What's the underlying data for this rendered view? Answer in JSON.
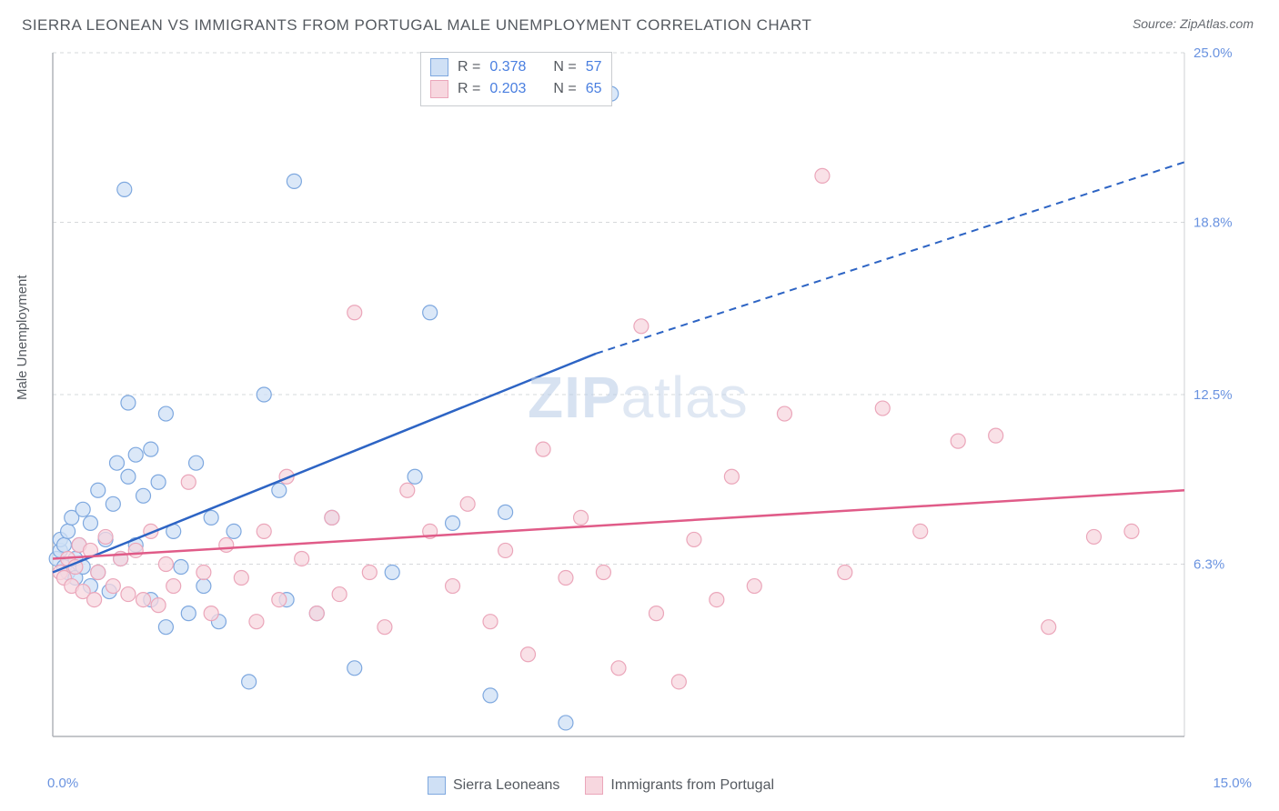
{
  "title": "SIERRA LEONEAN VS IMMIGRANTS FROM PORTUGAL MALE UNEMPLOYMENT CORRELATION CHART",
  "source": "Source: ZipAtlas.com",
  "ylabel": "Male Unemployment",
  "watermark_bold": "ZIP",
  "watermark_rest": "atlas",
  "chart": {
    "type": "scatter",
    "background_color": "#ffffff",
    "grid_color": "#d6d8db",
    "grid_dash": "4,4",
    "border_color": "#b0b4b9",
    "xlim": [
      0.0,
      15.0
    ],
    "ylim": [
      0.0,
      25.0
    ],
    "yticks": [
      6.3,
      12.5,
      18.8,
      25.0
    ],
    "ytick_labels": [
      "6.3%",
      "12.5%",
      "18.8%",
      "25.0%"
    ],
    "xtick_left_label": "0.0%",
    "xtick_right_label": "15.0%",
    "marker_radius": 8,
    "marker_stroke_width": 1.2,
    "trend_line_width": 2.5,
    "trend_dash_width": 2,
    "trend_dash_pattern": "8,6",
    "axis_label_color": "#6a93e0",
    "text_color": "#555a60"
  },
  "series": [
    {
      "name": "Sierra Leoneans",
      "fill": "#cfe0f5",
      "stroke": "#7ea8df",
      "line_color": "#2d64c4",
      "R": "0.378",
      "N": "57",
      "trend": {
        "x1": 0.0,
        "y1": 6.0,
        "x2_solid": 7.2,
        "y2_solid": 14.0,
        "x2_dash": 15.0,
        "y2_dash": 21.0
      },
      "points": [
        [
          0.05,
          6.5
        ],
        [
          0.1,
          6.8
        ],
        [
          0.1,
          7.2
        ],
        [
          0.15,
          6.2
        ],
        [
          0.15,
          7.0
        ],
        [
          0.2,
          7.5
        ],
        [
          0.2,
          6.0
        ],
        [
          0.25,
          8.0
        ],
        [
          0.3,
          5.8
        ],
        [
          0.3,
          6.5
        ],
        [
          0.35,
          7.0
        ],
        [
          0.4,
          6.2
        ],
        [
          0.4,
          8.3
        ],
        [
          0.5,
          5.5
        ],
        [
          0.5,
          7.8
        ],
        [
          0.6,
          6.0
        ],
        [
          0.6,
          9.0
        ],
        [
          0.7,
          7.2
        ],
        [
          0.75,
          5.3
        ],
        [
          0.8,
          8.5
        ],
        [
          0.85,
          10.0
        ],
        [
          0.9,
          6.5
        ],
        [
          0.95,
          20.0
        ],
        [
          1.0,
          9.5
        ],
        [
          1.0,
          12.2
        ],
        [
          1.1,
          7.0
        ],
        [
          1.1,
          10.3
        ],
        [
          1.2,
          8.8
        ],
        [
          1.3,
          10.5
        ],
        [
          1.3,
          5.0
        ],
        [
          1.4,
          9.3
        ],
        [
          1.5,
          11.8
        ],
        [
          1.5,
          4.0
        ],
        [
          1.6,
          7.5
        ],
        [
          1.7,
          6.2
        ],
        [
          1.8,
          4.5
        ],
        [
          1.9,
          10.0
        ],
        [
          2.0,
          5.5
        ],
        [
          2.1,
          8.0
        ],
        [
          2.2,
          4.2
        ],
        [
          2.4,
          7.5
        ],
        [
          2.6,
          2.0
        ],
        [
          2.8,
          12.5
        ],
        [
          3.0,
          9.0
        ],
        [
          3.1,
          5.0
        ],
        [
          3.2,
          20.3
        ],
        [
          3.5,
          4.5
        ],
        [
          3.7,
          8.0
        ],
        [
          4.0,
          2.5
        ],
        [
          4.5,
          6.0
        ],
        [
          4.8,
          9.5
        ],
        [
          5.0,
          15.5
        ],
        [
          5.3,
          7.8
        ],
        [
          5.8,
          1.5
        ],
        [
          6.0,
          8.2
        ],
        [
          6.8,
          0.5
        ],
        [
          7.4,
          23.5
        ]
      ]
    },
    {
      "name": "Immigrants from Portugal",
      "fill": "#f7d7df",
      "stroke": "#eba6ba",
      "line_color": "#e05b88",
      "R": "0.203",
      "N": "65",
      "trend": {
        "x1": 0.0,
        "y1": 6.5,
        "x2_solid": 15.0,
        "y2_solid": 9.0,
        "x2_dash": 15.0,
        "y2_dash": 9.0
      },
      "points": [
        [
          0.1,
          6.0
        ],
        [
          0.15,
          5.8
        ],
        [
          0.2,
          6.5
        ],
        [
          0.25,
          5.5
        ],
        [
          0.3,
          6.2
        ],
        [
          0.35,
          7.0
        ],
        [
          0.4,
          5.3
        ],
        [
          0.5,
          6.8
        ],
        [
          0.55,
          5.0
        ],
        [
          0.6,
          6.0
        ],
        [
          0.7,
          7.3
        ],
        [
          0.8,
          5.5
        ],
        [
          0.9,
          6.5
        ],
        [
          1.0,
          5.2
        ],
        [
          1.1,
          6.8
        ],
        [
          1.2,
          5.0
        ],
        [
          1.3,
          7.5
        ],
        [
          1.4,
          4.8
        ],
        [
          1.5,
          6.3
        ],
        [
          1.6,
          5.5
        ],
        [
          1.8,
          9.3
        ],
        [
          2.0,
          6.0
        ],
        [
          2.1,
          4.5
        ],
        [
          2.3,
          7.0
        ],
        [
          2.5,
          5.8
        ],
        [
          2.7,
          4.2
        ],
        [
          2.8,
          7.5
        ],
        [
          3.0,
          5.0
        ],
        [
          3.1,
          9.5
        ],
        [
          3.3,
          6.5
        ],
        [
          3.5,
          4.5
        ],
        [
          3.7,
          8.0
        ],
        [
          3.8,
          5.2
        ],
        [
          4.0,
          15.5
        ],
        [
          4.2,
          6.0
        ],
        [
          4.4,
          4.0
        ],
        [
          4.7,
          9.0
        ],
        [
          5.0,
          7.5
        ],
        [
          5.3,
          5.5
        ],
        [
          5.5,
          8.5
        ],
        [
          5.8,
          4.2
        ],
        [
          6.0,
          6.8
        ],
        [
          6.3,
          3.0
        ],
        [
          6.5,
          10.5
        ],
        [
          6.8,
          5.8
        ],
        [
          7.0,
          8.0
        ],
        [
          7.3,
          6.0
        ],
        [
          7.5,
          2.5
        ],
        [
          7.8,
          15.0
        ],
        [
          8.0,
          4.5
        ],
        [
          8.3,
          2.0
        ],
        [
          8.5,
          7.2
        ],
        [
          8.8,
          5.0
        ],
        [
          9.0,
          9.5
        ],
        [
          9.3,
          5.5
        ],
        [
          9.7,
          11.8
        ],
        [
          10.2,
          20.5
        ],
        [
          10.5,
          6.0
        ],
        [
          11.0,
          12.0
        ],
        [
          11.5,
          7.5
        ],
        [
          12.0,
          10.8
        ],
        [
          12.5,
          11.0
        ],
        [
          13.2,
          4.0
        ],
        [
          13.8,
          7.3
        ],
        [
          14.3,
          7.5
        ]
      ]
    }
  ],
  "legend_top": {
    "R_label": "R =",
    "N_label": "N ="
  },
  "legend_bottom": [
    {
      "label": "Sierra Leoneans",
      "fill": "#cfe0f5",
      "stroke": "#7ea8df"
    },
    {
      "label": "Immigrants from Portugal",
      "fill": "#f7d7df",
      "stroke": "#eba6ba"
    }
  ]
}
